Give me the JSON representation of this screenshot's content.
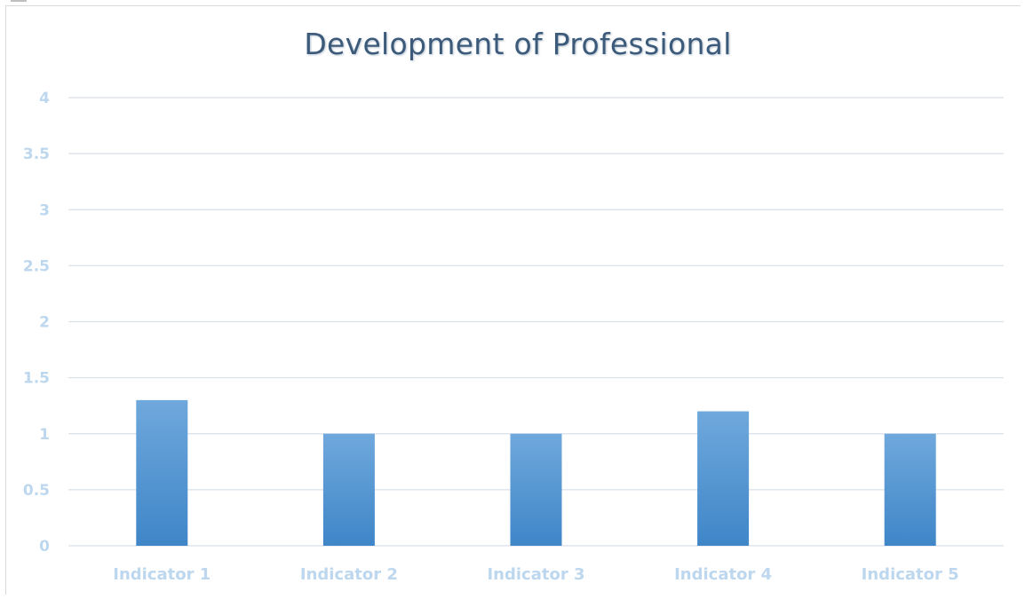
{
  "chart_data": {
    "type": "bar",
    "title": "Development of Professional",
    "categories": [
      "Indicator 1",
      "Indicator 2",
      "Indicator 3",
      "Indicator 4",
      "Indicator 5"
    ],
    "values": [
      1.3,
      1.0,
      1.0,
      1.2,
      1.0
    ],
    "ylim": [
      0,
      4
    ],
    "yticks": [
      "0",
      "0.5",
      "1",
      "1.5",
      "2",
      "2.5",
      "3",
      "3.5",
      "4"
    ],
    "xlabel": "",
    "ylabel": "",
    "grid": true,
    "legend": "none",
    "colors": {
      "bar_top": "#6fa8dc",
      "bar_bottom": "#3f86c8",
      "grid": "#d9e1ea",
      "tick_label": "#bdd7ee",
      "title": "#3c5a7a"
    }
  }
}
